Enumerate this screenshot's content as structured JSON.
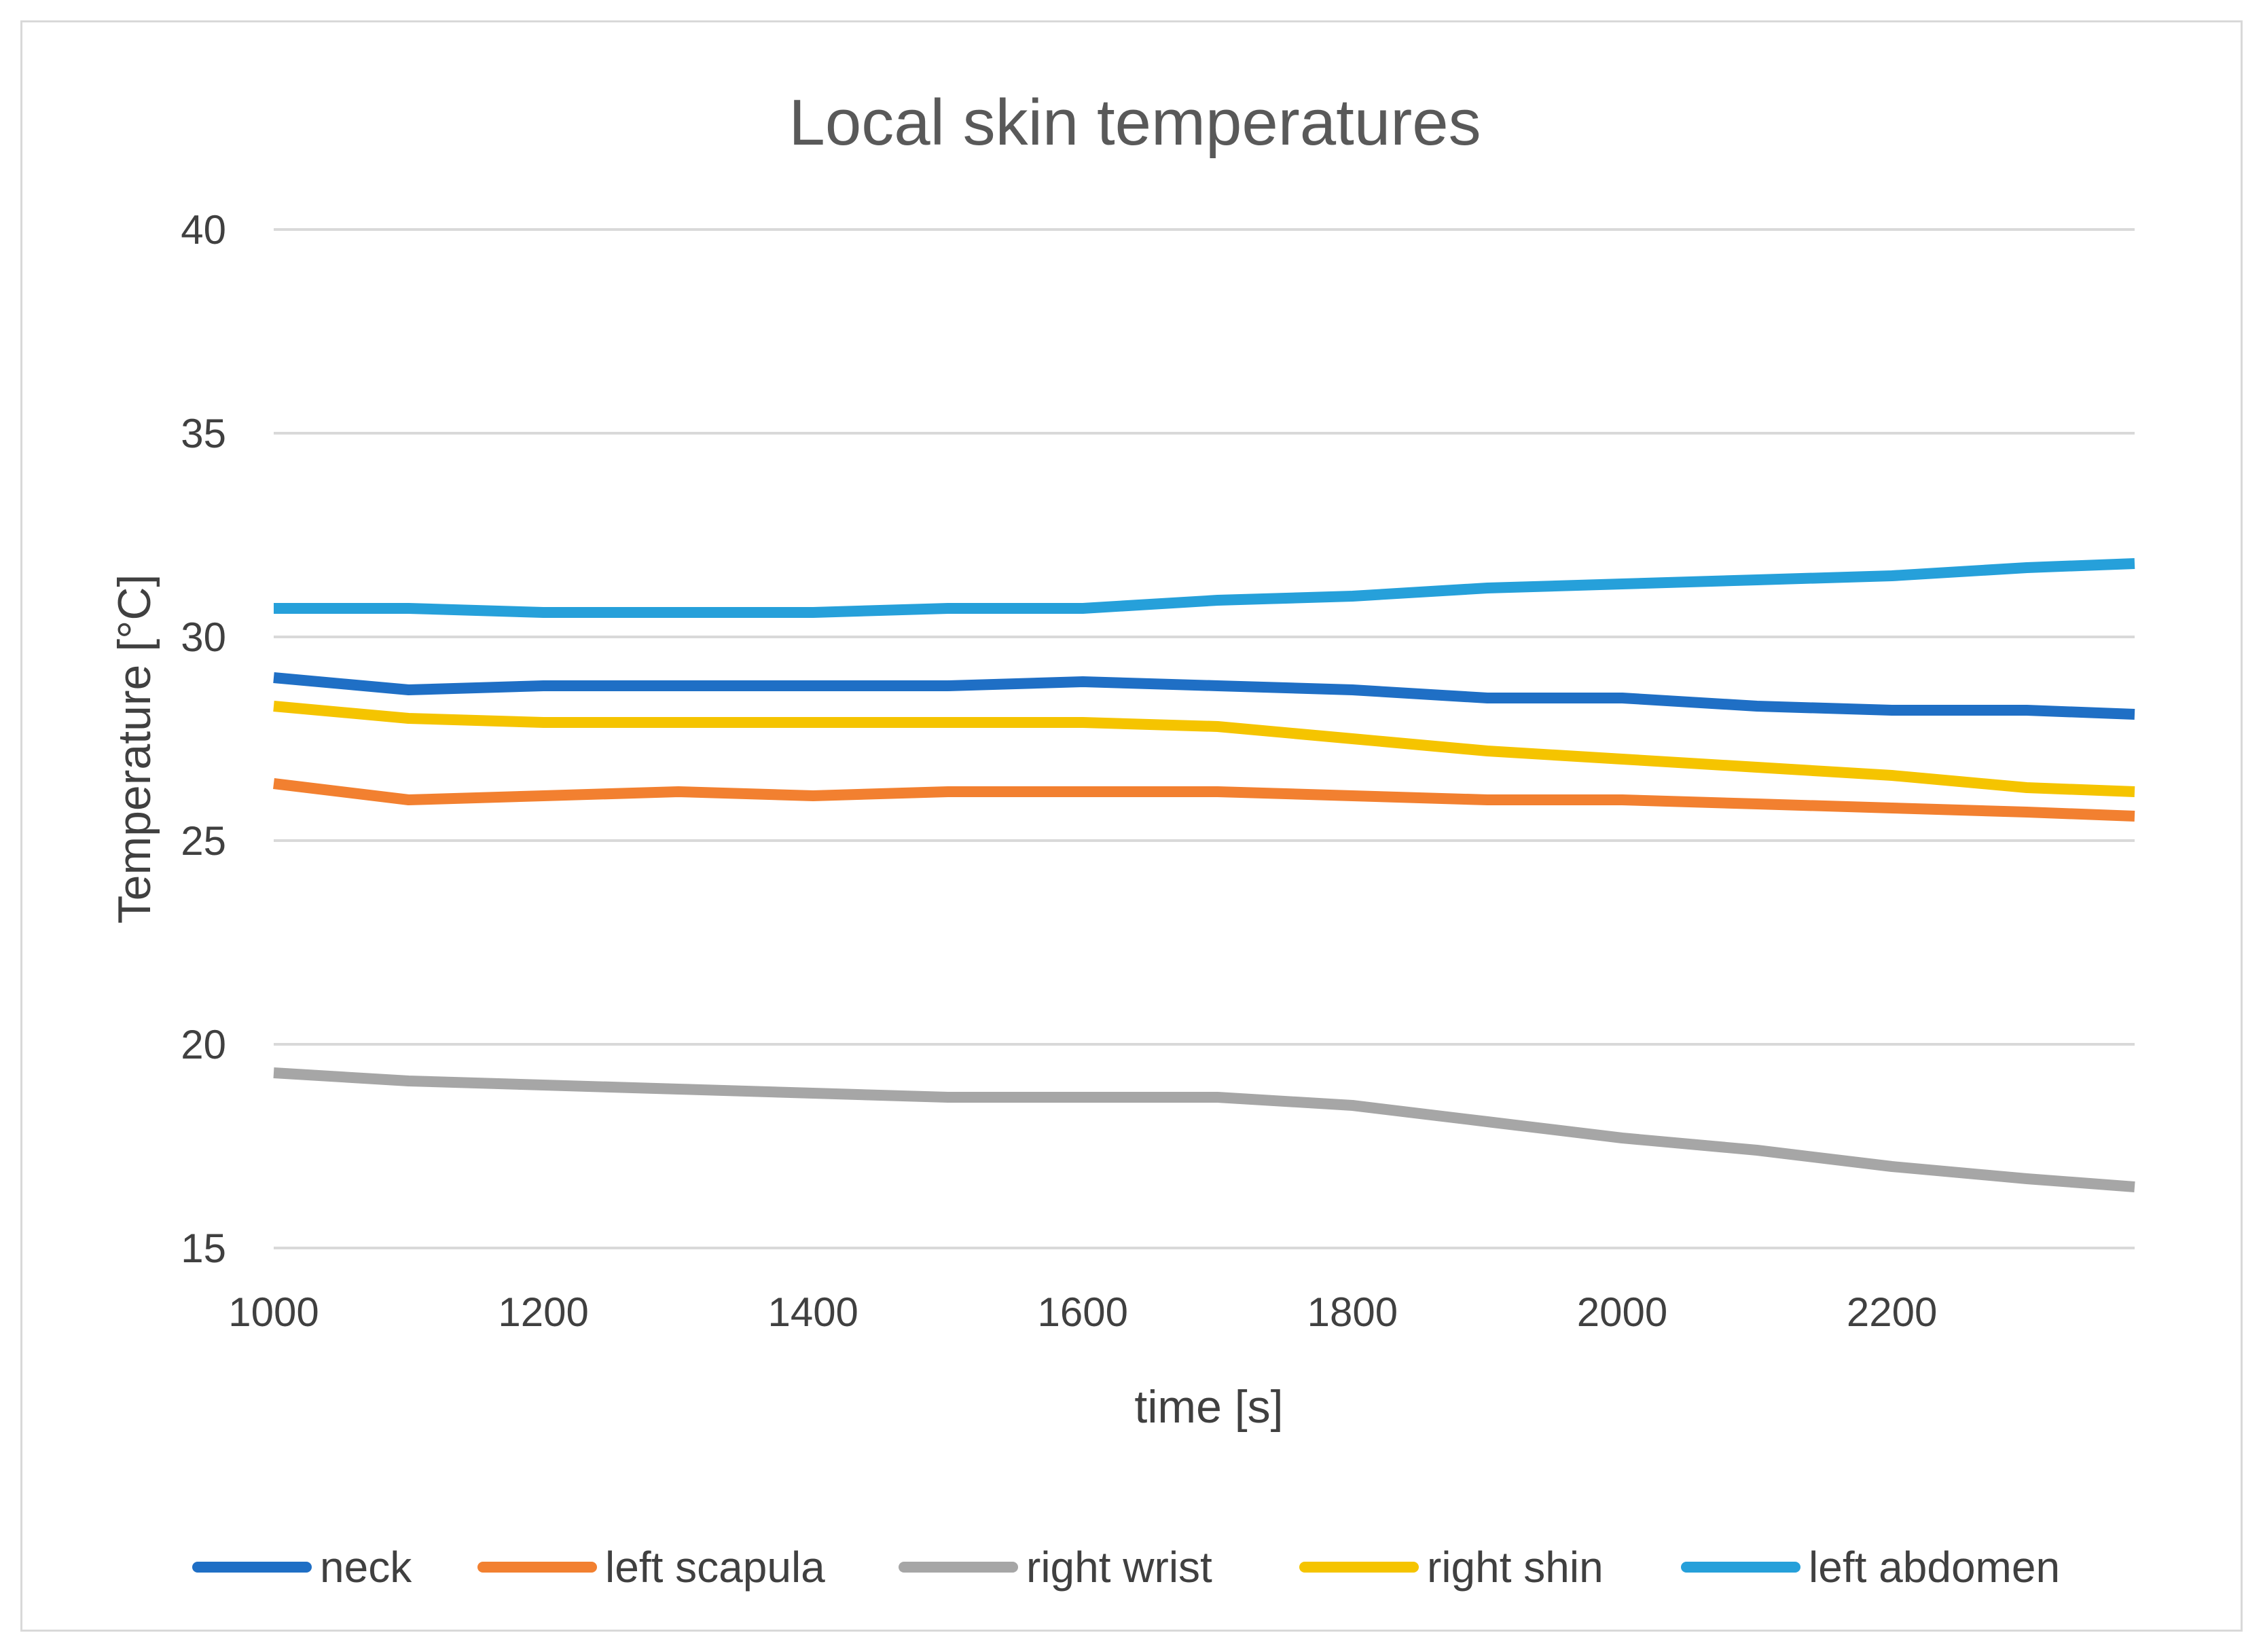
{
  "chart_data": {
    "type": "line",
    "title": "Local skin temperatures",
    "xlabel": "time [s]",
    "ylabel": "Temperature [°C]",
    "xlim": [
      1000,
      2380
    ],
    "ylim": [
      15,
      40
    ],
    "xticks": [
      1000,
      1200,
      1400,
      1600,
      1800,
      2000,
      2200
    ],
    "yticks": [
      15,
      20,
      25,
      30,
      35,
      40
    ],
    "grid": true,
    "legend_position": "bottom",
    "x": [
      1000,
      1100,
      1200,
      1300,
      1400,
      1500,
      1600,
      1700,
      1800,
      1900,
      2000,
      2100,
      2200,
      2300,
      2380
    ],
    "series": [
      {
        "name": "neck",
        "color": "#1f6fc5",
        "values": [
          29.0,
          28.7,
          28.8,
          28.8,
          28.8,
          28.8,
          28.9,
          28.8,
          28.7,
          28.5,
          28.5,
          28.3,
          28.2,
          28.2,
          28.1
        ]
      },
      {
        "name": "left scapula",
        "color": "#f28030",
        "values": [
          26.4,
          26.0,
          26.1,
          26.2,
          26.1,
          26.2,
          26.2,
          26.2,
          26.1,
          26.0,
          26.0,
          25.9,
          25.8,
          25.7,
          25.6
        ]
      },
      {
        "name": "right wrist",
        "color": "#a6a6a6",
        "values": [
          19.3,
          19.1,
          19.0,
          18.9,
          18.8,
          18.7,
          18.7,
          18.7,
          18.5,
          18.1,
          17.7,
          17.4,
          17.0,
          16.7,
          16.5
        ]
      },
      {
        "name": "right shin",
        "color": "#f5c400",
        "values": [
          28.3,
          28.0,
          27.9,
          27.9,
          27.9,
          27.9,
          27.9,
          27.8,
          27.5,
          27.2,
          27.0,
          26.8,
          26.6,
          26.3,
          26.2
        ]
      },
      {
        "name": "left abdomen",
        "color": "#26a0da",
        "values": [
          30.7,
          30.7,
          30.6,
          30.6,
          30.6,
          30.7,
          30.7,
          30.9,
          31.0,
          31.2,
          31.3,
          31.4,
          31.5,
          31.7,
          31.8
        ]
      }
    ]
  }
}
